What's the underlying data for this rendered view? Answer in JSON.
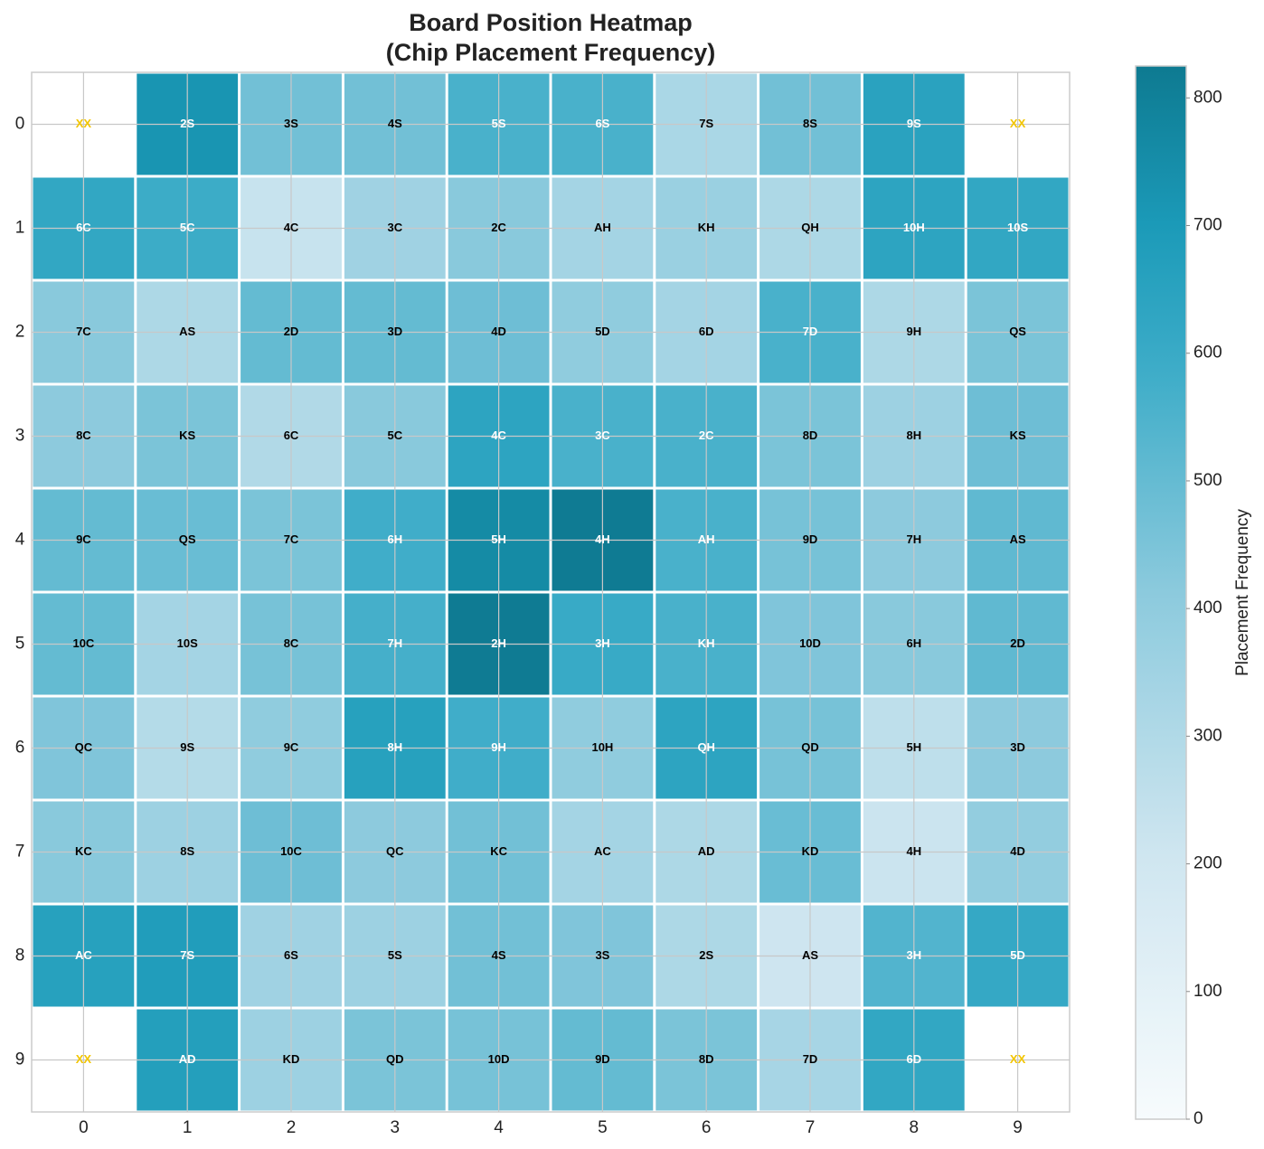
{
  "chart_data": {
    "type": "heatmap",
    "title": "Board Position Heatmap",
    "subtitle": "(Chip Placement Frequency)",
    "xticks": [
      0,
      1,
      2,
      3,
      4,
      5,
      6,
      7,
      8,
      9
    ],
    "yticks": [
      0,
      1,
      2,
      3,
      4,
      5,
      6,
      7,
      8,
      9
    ],
    "grid": true,
    "colorbar_label": "Placement Frequency",
    "clim": [
      0,
      825
    ],
    "cticks": [
      0,
      100,
      200,
      300,
      400,
      500,
      600,
      700,
      800
    ],
    "values": [
      [
        null,
        720,
        470,
        470,
        560,
        560,
        320,
        470,
        650,
        null
      ],
      [
        620,
        590,
        230,
        350,
        420,
        340,
        370,
        310,
        640,
        620
      ],
      [
        420,
        310,
        500,
        500,
        480,
        400,
        340,
        560,
        310,
        450
      ],
      [
        410,
        450,
        300,
        420,
        640,
        560,
        560,
        450,
        360,
        480
      ],
      [
        500,
        490,
        450,
        580,
        760,
        820,
        560,
        460,
        410,
        510
      ],
      [
        500,
        340,
        460,
        570,
        820,
        600,
        560,
        440,
        420,
        510
      ],
      [
        440,
        290,
        400,
        660,
        580,
        400,
        640,
        460,
        260,
        410
      ],
      [
        420,
        360,
        480,
        410,
        470,
        340,
        310,
        490,
        220,
        390
      ],
      [
        660,
        680,
        350,
        360,
        470,
        440,
        310,
        210,
        540,
        610
      ],
      [
        null,
        670,
        360,
        450,
        460,
        500,
        450,
        330,
        620,
        null
      ]
    ],
    "labels": [
      [
        "XX",
        "2S",
        "3S",
        "4S",
        "5S",
        "6S",
        "7S",
        "8S",
        "9S",
        "XX"
      ],
      [
        "6C",
        "5C",
        "4C",
        "3C",
        "2C",
        "AH",
        "KH",
        "QH",
        "10H",
        "10S"
      ],
      [
        "7C",
        "AS",
        "2D",
        "3D",
        "4D",
        "5D",
        "6D",
        "7D",
        "9H",
        "QS"
      ],
      [
        "8C",
        "KS",
        "6C",
        "5C",
        "4C",
        "3C",
        "2C",
        "8D",
        "8H",
        "KS"
      ],
      [
        "9C",
        "QS",
        "7C",
        "6H",
        "5H",
        "4H",
        "AH",
        "9D",
        "7H",
        "AS"
      ],
      [
        "10C",
        "10S",
        "8C",
        "7H",
        "2H",
        "3H",
        "KH",
        "10D",
        "6H",
        "2D"
      ],
      [
        "QC",
        "9S",
        "9C",
        "8H",
        "9H",
        "10H",
        "QH",
        "QD",
        "5H",
        "3D"
      ],
      [
        "KC",
        "8S",
        "10C",
        "QC",
        "KC",
        "AC",
        "AD",
        "KD",
        "4H",
        "4D"
      ],
      [
        "AC",
        "7S",
        "6S",
        "5S",
        "4S",
        "3S",
        "2S",
        "AS",
        "3H",
        "5D"
      ],
      [
        "XX",
        "AD",
        "KD",
        "QD",
        "10D",
        "9D",
        "8D",
        "7D",
        "6D",
        "XX"
      ]
    ]
  }
}
